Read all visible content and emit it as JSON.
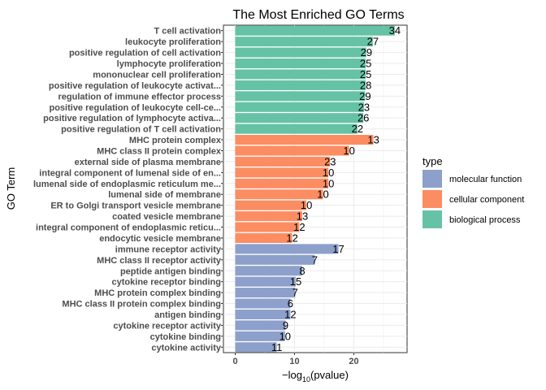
{
  "chart_data": {
    "type": "bar",
    "orientation": "horizontal",
    "title": "The Most Enriched GO Terms",
    "xlabel_prefix": "−log",
    "xlabel_sub": "10",
    "xlabel_suffix": "(pvalue)",
    "ylabel": "GO Term",
    "xlim": [
      0,
      28
    ],
    "xticks": [
      0,
      10,
      20
    ],
    "grid": true,
    "legend": {
      "title": "type",
      "position": "right",
      "entries": [
        {
          "label": "molecular function",
          "color": "#8DA0CB"
        },
        {
          "label": "cellular component",
          "color": "#FC8D62"
        },
        {
          "label": "biological process",
          "color": "#66C2A5"
        }
      ]
    },
    "categories": [
      {
        "term": "T cell activation",
        "type": "biological process",
        "value": 26.9,
        "count": "34"
      },
      {
        "term": "leukocyte proliferation",
        "type": "biological process",
        "value": 23.2,
        "count": "27"
      },
      {
        "term": "positive regulation of cell activation",
        "type": "biological process",
        "value": 22.1,
        "count": "29"
      },
      {
        "term": "lymphocyte proliferation",
        "type": "biological process",
        "value": 22.0,
        "count": "25"
      },
      {
        "term": "mononuclear cell proliferation",
        "type": "biological process",
        "value": 22.0,
        "count": "25"
      },
      {
        "term": "positive regulation of leukocyte activat...",
        "type": "biological process",
        "value": 22.0,
        "count": "28"
      },
      {
        "term": "regulation of immune effector process",
        "type": "biological process",
        "value": 21.9,
        "count": "29"
      },
      {
        "term": "positive regulation of leukocyte cell-ce...",
        "type": "biological process",
        "value": 21.7,
        "count": "23"
      },
      {
        "term": "positive regulation of lymphocyte activa...",
        "type": "biological process",
        "value": 21.6,
        "count": "26"
      },
      {
        "term": "positive regulation of T cell activation",
        "type": "biological process",
        "value": 20.6,
        "count": "22"
      },
      {
        "term": "MHC protein complex",
        "type": "cellular component",
        "value": 23.3,
        "count": "13"
      },
      {
        "term": "MHC class II protein complex",
        "type": "cellular component",
        "value": 19.2,
        "count": "10"
      },
      {
        "term": "external side of plasma membrane",
        "type": "cellular component",
        "value": 16.0,
        "count": "23"
      },
      {
        "term": "integral component of lumenal side of en...",
        "type": "cellular component",
        "value": 15.7,
        "count": "10"
      },
      {
        "term": "lumenal side of endoplasmic reticulum me...",
        "type": "cellular component",
        "value": 15.7,
        "count": "10"
      },
      {
        "term": "lumenal side of membrane",
        "type": "cellular component",
        "value": 14.8,
        "count": "10"
      },
      {
        "term": "ER to Golgi transport vesicle membrane",
        "type": "cellular component",
        "value": 12.0,
        "count": "10"
      },
      {
        "term": "coated vesicle membrane",
        "type": "cellular component",
        "value": 11.3,
        "count": "13"
      },
      {
        "term": "integral component of endoplasmic reticu...",
        "type": "cellular component",
        "value": 10.8,
        "count": "12"
      },
      {
        "term": "endocytic vesicle membrane",
        "type": "cellular component",
        "value": 9.6,
        "count": "12"
      },
      {
        "term": "immune receptor activity",
        "type": "molecular function",
        "value": 17.4,
        "count": "17"
      },
      {
        "term": "MHC class II receptor activity",
        "type": "molecular function",
        "value": 13.4,
        "count": "7"
      },
      {
        "term": "peptide antigen binding",
        "type": "molecular function",
        "value": 11.3,
        "count": "8"
      },
      {
        "term": "cytokine receptor binding",
        "type": "molecular function",
        "value": 10.2,
        "count": "15"
      },
      {
        "term": "MHC protein complex binding",
        "type": "molecular function",
        "value": 10.1,
        "count": "7"
      },
      {
        "term": "MHC class II protein complex binding",
        "type": "molecular function",
        "value": 9.3,
        "count": "6"
      },
      {
        "term": "antigen binding",
        "type": "molecular function",
        "value": 9.3,
        "count": "12"
      },
      {
        "term": "cytokine receptor activity",
        "type": "molecular function",
        "value": 8.5,
        "count": "9"
      },
      {
        "term": "cytokine binding",
        "type": "molecular function",
        "value": 8.4,
        "count": "10"
      },
      {
        "term": "cytokine activity",
        "type": "molecular function",
        "value": 7.0,
        "count": "11"
      }
    ]
  }
}
